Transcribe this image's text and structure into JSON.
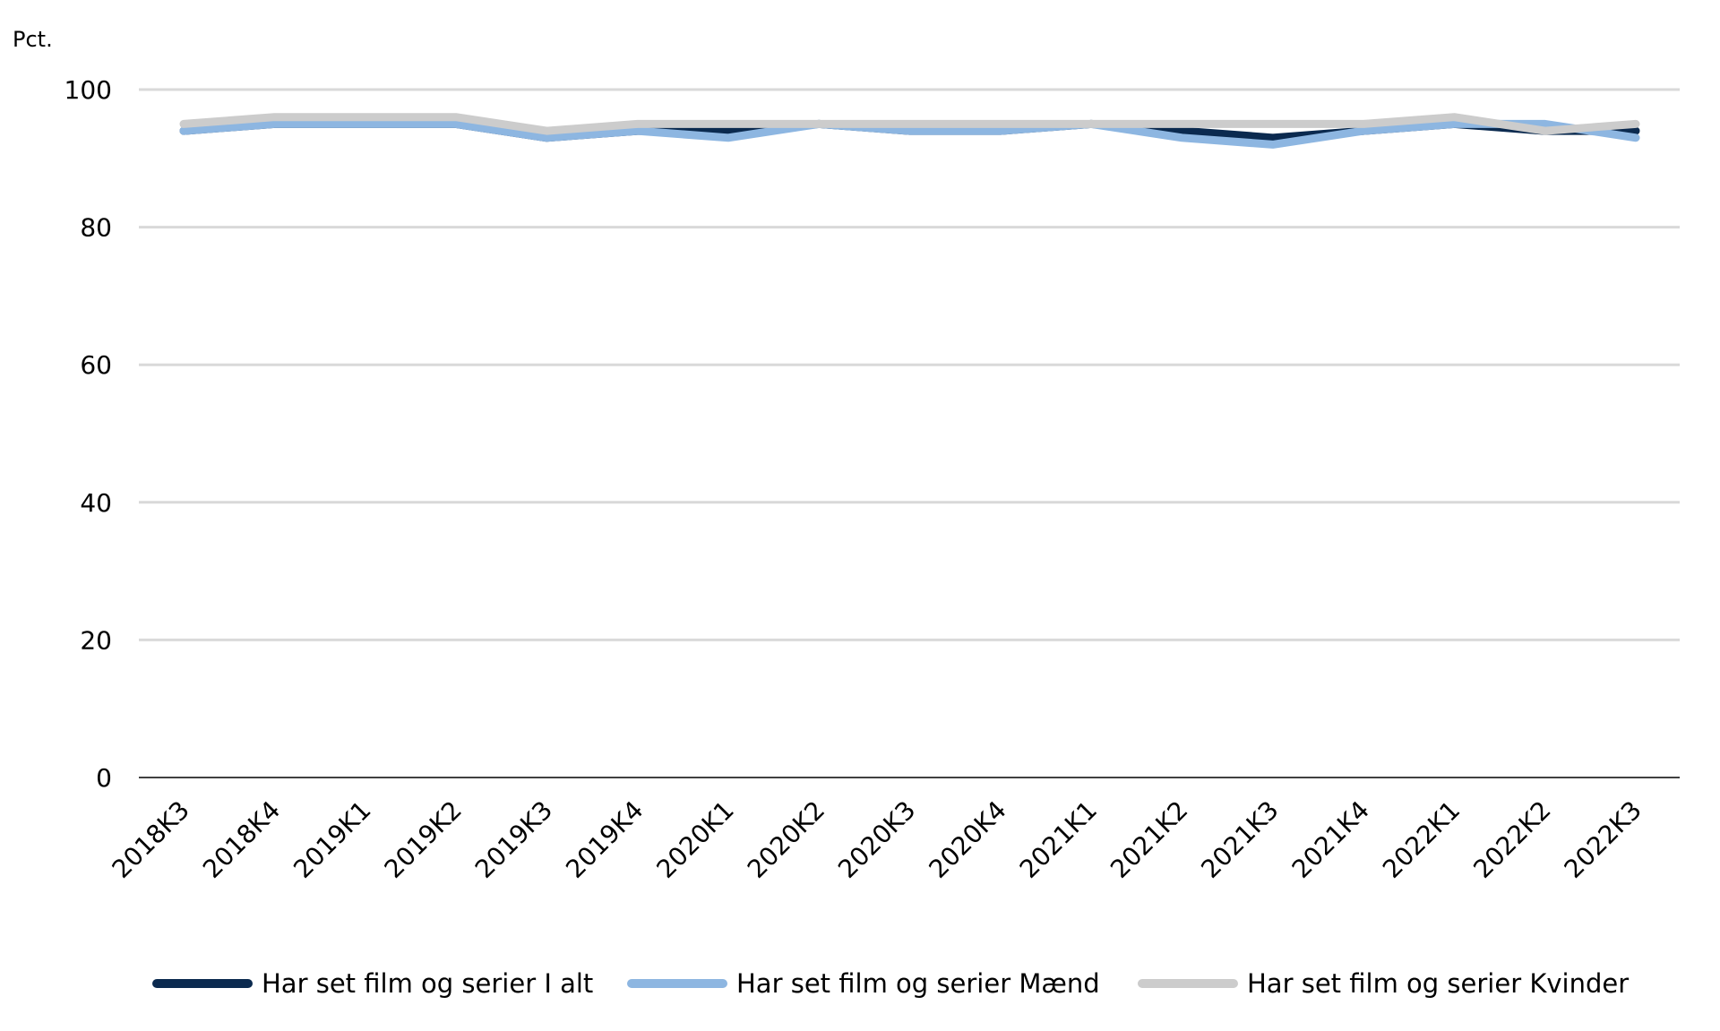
{
  "chart_data": {
    "type": "line",
    "ylabel": "Pct.",
    "ylim": [
      0,
      100
    ],
    "yticks": [
      0,
      20,
      40,
      60,
      80,
      100
    ],
    "grid": true,
    "legend_position": "bottom",
    "categories": [
      "2018K3",
      "2018K4",
      "2019K1",
      "2019K2",
      "2019K3",
      "2019K4",
      "2020K1",
      "2020K2",
      "2020K3",
      "2020K4",
      "2021K1",
      "2021K2",
      "2021K3",
      "2021K4",
      "2022K1",
      "2022K2",
      "2022K3"
    ],
    "series": [
      {
        "name": "Har set film og serier I alt",
        "color": "#0b2a4f",
        "values": [
          94,
          95,
          95,
          95,
          93,
          94,
          94,
          95,
          94,
          94,
          95,
          94,
          93,
          94,
          95,
          94,
          94
        ]
      },
      {
        "name": "Har set film og serier Mænd",
        "color": "#8db6e1",
        "values": [
          94,
          95,
          95,
          95,
          93,
          94,
          93,
          95,
          94,
          94,
          95,
          93,
          92,
          94,
          95,
          95,
          93
        ]
      },
      {
        "name": "Har set film og serier Kvinder",
        "color": "#cccccc",
        "values": [
          95,
          96,
          96,
          96,
          94,
          95,
          95,
          95,
          95,
          95,
          95,
          95,
          95,
          95,
          96,
          94,
          95
        ]
      }
    ]
  }
}
